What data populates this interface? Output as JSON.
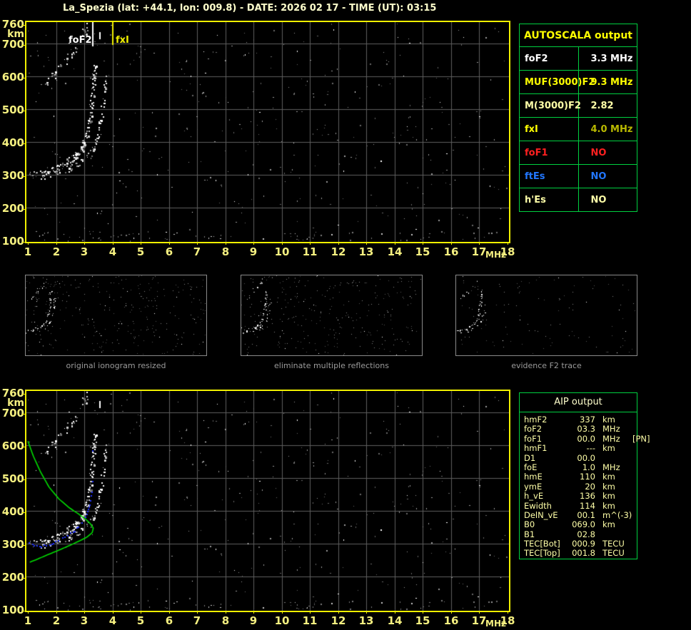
{
  "title": "La_Spezia (lat: +44.1, lon: 009.8) - DATE: 2026 02 17 - TIME (UT): 03:15",
  "colors": {
    "background": "#000000",
    "plot_border": "#f0f000",
    "axis_text": "#f5f080",
    "grid": "#5e5e5e",
    "table_border": "#00d040",
    "title_text": "#ffffcc",
    "caption_gray": "#9a9a9a",
    "profile_green": "#00dd00",
    "restored_blue": "#2233ff",
    "fof2_marker": "#ffffff",
    "fxi_marker": "#f0f000"
  },
  "ionogram": {
    "x_unit": "MHz",
    "y_unit": "km",
    "x_ticks": [
      1,
      2,
      3,
      4,
      5,
      6,
      7,
      8,
      9,
      10,
      11,
      12,
      13,
      14,
      15,
      16,
      17,
      18
    ],
    "y_ticks": [
      760,
      700,
      600,
      500,
      400,
      300,
      200,
      100
    ],
    "markers": {
      "fof2": {
        "label": "foF2",
        "freq": 3.3,
        "color": "#ffffff"
      },
      "fxi": {
        "label": "fxI",
        "freq": 4.0,
        "color": "#f0f000"
      }
    }
  },
  "autoscala_table": {
    "title": "AUTOSCALA output",
    "rows": [
      {
        "label": "foF2",
        "value": "3.3 MHz",
        "label_color": "#ffffff",
        "value_color": "#ffffff"
      },
      {
        "label": "MUF(3000)F2",
        "value": "9.3 MHz",
        "label_color": "#ffff00",
        "value_color": "#ffff00"
      },
      {
        "label": "M(3000)F2",
        "value": "2.82",
        "label_color": "#ffffa8",
        "value_color": "#ffffa8"
      },
      {
        "label": "fxI",
        "value": "4.0 MHz",
        "label_color": "#ffff00",
        "value_color": "#b9b900"
      },
      {
        "label": "foF1",
        "value": "NO",
        "label_color": "#ff2020",
        "value_color": "#ff2020"
      },
      {
        "label": "ftEs",
        "value": "NO",
        "label_color": "#2277ff",
        "value_color": "#2277ff"
      },
      {
        "label": "h'Es",
        "value": "NO",
        "label_color": "#ffffa8",
        "value_color": "#ffffa8"
      }
    ]
  },
  "thumbnails": [
    {
      "caption": "original ionogram resized"
    },
    {
      "caption": "eliminate multiple reflections"
    },
    {
      "caption": "evidence F2 trace"
    }
  ],
  "aip_table": {
    "title": "AIP output",
    "rows": [
      {
        "name": "hmF2",
        "value": "337",
        "unit": "km",
        "extra": ""
      },
      {
        "name": "foF2",
        "value": "03.3",
        "unit": "MHz",
        "extra": ""
      },
      {
        "name": "foF1",
        "value": "00.0",
        "unit": "MHz",
        "extra": "[PN]"
      },
      {
        "name": "hmF1",
        "value": "---",
        "unit": "km",
        "extra": ""
      },
      {
        "name": "D1",
        "value": "00.0",
        "unit": "",
        "extra": ""
      },
      {
        "name": "foE",
        "value": "1.0",
        "unit": "MHz",
        "extra": ""
      },
      {
        "name": "hmE",
        "value": "110",
        "unit": "km",
        "extra": ""
      },
      {
        "name": "ymE",
        "value": "20",
        "unit": "km",
        "extra": ""
      },
      {
        "name": "h_vE",
        "value": "136",
        "unit": "km",
        "extra": ""
      },
      {
        "name": "Ewidth",
        "value": "114",
        "unit": "km",
        "extra": ""
      },
      {
        "name": "DelN_vE",
        "value": "00.1",
        "unit": "m^(-3)",
        "extra": ""
      },
      {
        "name": "B0",
        "value": "069.0",
        "unit": "km",
        "extra": ""
      },
      {
        "name": "B1",
        "value": "02.8",
        "unit": "",
        "extra": ""
      },
      {
        "name": "TEC[Bot]",
        "value": "000.9",
        "unit": "TECU",
        "extra": ""
      },
      {
        "name": "TEC[Top]",
        "value": "001.8",
        "unit": "TECU",
        "extra": ""
      }
    ]
  },
  "chart_data": [
    {
      "type": "scatter",
      "title": "ionogram echo trace (top panel)",
      "xlabel": "MHz",
      "ylabel": "km",
      "xlim": [
        1,
        18
      ],
      "ylim": [
        100,
        760
      ],
      "grid": true,
      "o_trace": [
        [
          1.05,
          298
        ],
        [
          1.3,
          302
        ],
        [
          1.6,
          308
        ],
        [
          1.95,
          318
        ],
        [
          2.3,
          332
        ],
        [
          2.6,
          352
        ],
        [
          2.85,
          378
        ],
        [
          3.0,
          405
        ],
        [
          3.1,
          435
        ],
        [
          3.18,
          470
        ],
        [
          3.24,
          510
        ],
        [
          3.29,
          555
        ],
        [
          3.33,
          605
        ],
        [
          3.36,
          640
        ]
      ],
      "knee_cluster": [
        [
          2.4,
          338
        ],
        [
          2.7,
          360
        ],
        [
          2.9,
          385
        ],
        [
          3.0,
          405
        ]
      ],
      "x_trace_offset_mhz": 0.42,
      "second_reflection": [
        [
          1.5,
          572
        ],
        [
          1.75,
          592
        ],
        [
          2.0,
          615
        ],
        [
          2.25,
          638
        ],
        [
          2.5,
          662
        ],
        [
          2.7,
          688
        ],
        [
          2.85,
          712
        ],
        [
          3.0,
          738
        ],
        [
          3.1,
          758
        ]
      ],
      "artifact_point": [
        3.55,
        735
      ],
      "fof2_line_mhz": 3.3,
      "fxi_line_mhz": 4.0
    },
    {
      "type": "scatter",
      "title": "ionogram with AIP inversion (bottom panel)",
      "xlabel": "MHz",
      "ylabel": "km",
      "xlim": [
        1,
        18
      ],
      "ylim": [
        100,
        760
      ],
      "grid": true,
      "profile_green": [
        [
          1.0,
          612
        ],
        [
          1.2,
          565
        ],
        [
          1.45,
          518
        ],
        [
          1.75,
          472
        ],
        [
          2.1,
          436
        ],
        [
          2.45,
          410
        ],
        [
          2.8,
          390
        ],
        [
          3.05,
          374
        ],
        [
          3.22,
          360
        ],
        [
          3.32,
          347
        ],
        [
          3.28,
          333
        ],
        [
          3.1,
          320
        ],
        [
          2.85,
          309
        ],
        [
          2.5,
          295
        ],
        [
          2.1,
          280
        ],
        [
          1.7,
          266
        ],
        [
          1.35,
          253
        ],
        [
          1.0,
          241
        ]
      ],
      "blue_trace": [
        [
          1.05,
          303
        ],
        [
          1.2,
          296
        ],
        [
          1.4,
          292
        ],
        [
          1.65,
          296
        ],
        [
          1.9,
          304
        ],
        [
          2.15,
          315
        ],
        [
          2.4,
          327
        ],
        [
          2.65,
          341
        ],
        [
          2.85,
          358
        ],
        [
          3.0,
          377
        ],
        [
          3.1,
          398
        ],
        [
          3.17,
          422
        ],
        [
          3.22,
          448
        ],
        [
          3.25,
          466
        ]
      ],
      "blue_isolated": [
        [
          3.27,
          490
        ],
        [
          3.28,
          585
        ]
      ]
    }
  ]
}
